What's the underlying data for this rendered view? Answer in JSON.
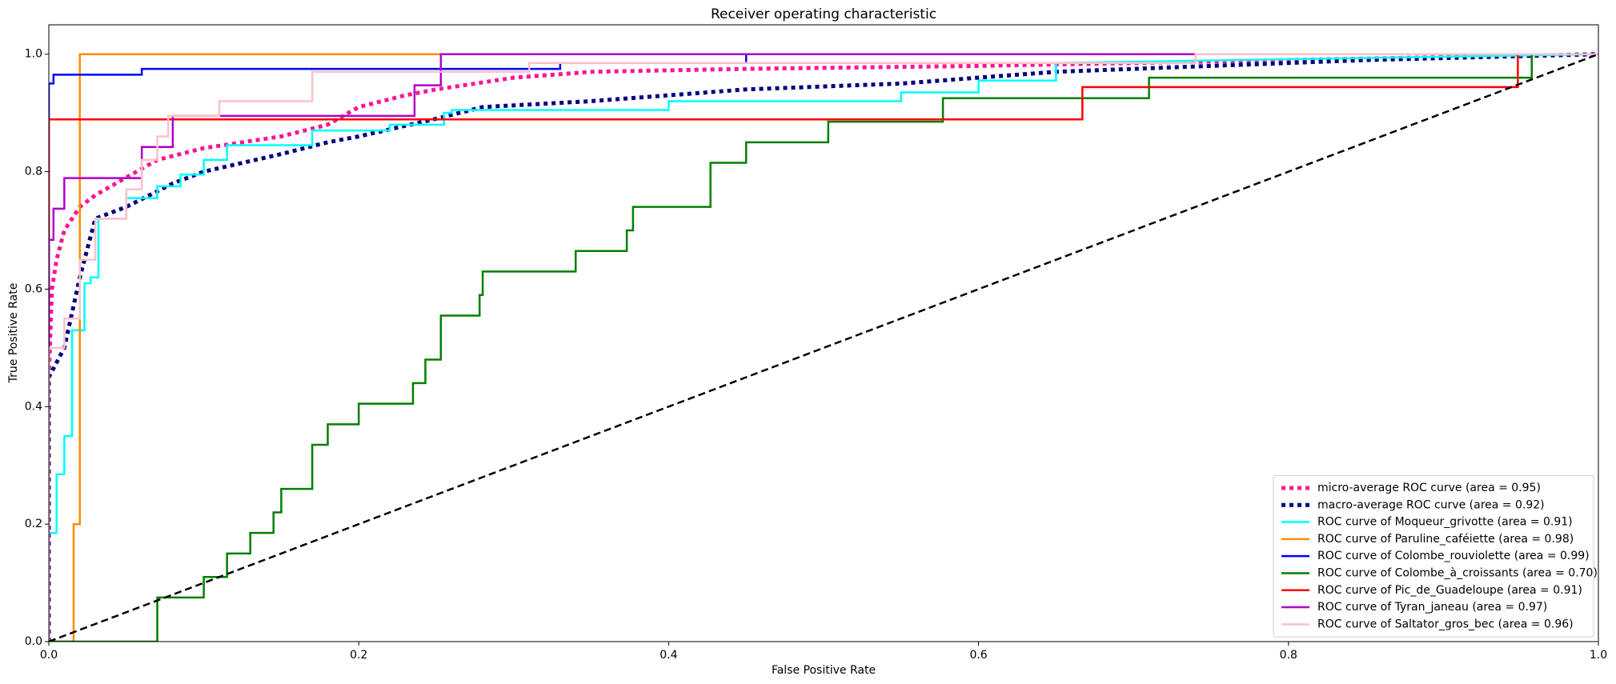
{
  "chart_data": {
    "type": "line",
    "title": "Receiver operating characteristic",
    "xlabel": "False Positive Rate",
    "ylabel": "True Positive Rate",
    "xlim": [
      0,
      1
    ],
    "ylim": [
      0,
      1.05
    ],
    "xticks": [
      {
        "value": 0,
        "label": "0.0"
      },
      0.2,
      0.4,
      0.6,
      0.8,
      {
        "value": 1,
        "label": "1.0"
      }
    ],
    "yticks": [
      {
        "value": 0,
        "label": "0.0"
      },
      0.2,
      0.4,
      0.6,
      0.8,
      {
        "value": 1,
        "label": "1.0"
      }
    ],
    "legend": "lower right",
    "series": [
      {
        "name": "micro-average ROC curve (area = 0.95)",
        "color": "deeppink",
        "linestyle": "dotted",
        "x": [
          0,
          0,
          0.002,
          0.005,
          0.01,
          0.02,
          0.03,
          0.05,
          0.07,
          0.1,
          0.15,
          0.18,
          0.2,
          0.23,
          0.25,
          0.3,
          0.35,
          0.45,
          0.6,
          0.7,
          0.8,
          0.9,
          1
        ],
        "y": [
          0,
          0.45,
          0.6,
          0.65,
          0.7,
          0.74,
          0.76,
          0.79,
          0.82,
          0.84,
          0.86,
          0.88,
          0.91,
          0.93,
          0.94,
          0.96,
          0.97,
          0.975,
          0.98,
          0.985,
          0.99,
          0.995,
          1
        ]
      },
      {
        "name": "macro-average ROC curve (area = 0.92)",
        "color": "navy",
        "linestyle": "dotted",
        "x": [
          0,
          0,
          0.01,
          0.02,
          0.03,
          0.05,
          0.08,
          0.1,
          0.15,
          0.18,
          0.2,
          0.25,
          0.28,
          0.35,
          0.45,
          0.55,
          0.65,
          0.75,
          0.85,
          1
        ],
        "y": [
          0,
          0.45,
          0.5,
          0.62,
          0.72,
          0.74,
          0.78,
          0.8,
          0.83,
          0.85,
          0.86,
          0.89,
          0.91,
          0.92,
          0.94,
          0.95,
          0.97,
          0.98,
          0.99,
          1
        ]
      },
      {
        "name": "ROC curve of Moqueur_grivotte (area = 0.91)",
        "color": "aqua",
        "linestyle": "solid",
        "x": [
          0,
          0,
          0.005,
          0.005,
          0.01,
          0.01,
          0.015,
          0.015,
          0.023,
          0.023,
          0.027,
          0.027,
          0.032,
          0.032,
          0.05,
          0.05,
          0.07,
          0.07,
          0.085,
          0.085,
          0.1,
          0.1,
          0.115,
          0.115,
          0.17,
          0.17,
          0.22,
          0.22,
          0.255,
          0.255,
          0.26,
          0.26,
          0.4,
          0.4,
          0.55,
          0.55,
          0.6,
          0.6,
          0.65,
          0.65,
          1
        ],
        "y": [
          0,
          0.185,
          0.185,
          0.285,
          0.285,
          0.35,
          0.35,
          0.53,
          0.53,
          0.61,
          0.61,
          0.62,
          0.62,
          0.72,
          0.72,
          0.755,
          0.755,
          0.775,
          0.775,
          0.795,
          0.795,
          0.82,
          0.82,
          0.845,
          0.845,
          0.87,
          0.87,
          0.88,
          0.88,
          0.9,
          0.9,
          0.905,
          0.905,
          0.92,
          0.92,
          0.935,
          0.935,
          0.955,
          0.955,
          0.985,
          1
        ]
      },
      {
        "name": "ROC curve of Paruline_caféiette (area = 0.98)",
        "color": "darkorange",
        "linestyle": "solid",
        "x": [
          0,
          0.016,
          0.016,
          0.02,
          0.02,
          1
        ],
        "y": [
          0,
          0,
          0.2,
          0.2,
          1,
          1
        ]
      },
      {
        "name": "ROC curve of Colombe_rouviolette (area = 0.99)",
        "color": "blue",
        "linestyle": "solid",
        "x": [
          0,
          0,
          0.003,
          0.003,
          0.06,
          0.06,
          0.33,
          0.33,
          0.45,
          0.45,
          1
        ],
        "y": [
          0,
          0.95,
          0.95,
          0.965,
          0.965,
          0.975,
          0.975,
          0.985,
          0.985,
          1,
          1
        ]
      },
      {
        "name": "ROC curve of Colombe_à_croissants (area = 0.70)",
        "color": "green",
        "linestyle": "solid",
        "x": [
          0,
          0.07,
          0.07,
          0.1,
          0.1,
          0.115,
          0.115,
          0.13,
          0.13,
          0.145,
          0.145,
          0.15,
          0.15,
          0.17,
          0.17,
          0.18,
          0.18,
          0.2,
          0.2,
          0.235,
          0.235,
          0.243,
          0.243,
          0.253,
          0.253,
          0.278,
          0.278,
          0.28,
          0.28,
          0.34,
          0.34,
          0.373,
          0.373,
          0.377,
          0.377,
          0.427,
          0.427,
          0.45,
          0.45,
          0.503,
          0.503,
          0.577,
          0.577,
          0.71,
          0.71,
          0.957,
          0.957,
          1
        ],
        "y": [
          0,
          0,
          0.075,
          0.075,
          0.11,
          0.11,
          0.15,
          0.15,
          0.185,
          0.185,
          0.22,
          0.22,
          0.26,
          0.26,
          0.335,
          0.335,
          0.37,
          0.37,
          0.405,
          0.405,
          0.44,
          0.44,
          0.48,
          0.48,
          0.555,
          0.555,
          0.59,
          0.59,
          0.63,
          0.63,
          0.665,
          0.665,
          0.7,
          0.7,
          0.74,
          0.74,
          0.815,
          0.815,
          0.85,
          0.85,
          0.885,
          0.885,
          0.925,
          0.925,
          0.96,
          0.96,
          1,
          1
        ]
      },
      {
        "name": "ROC curve of Pic_de_Guadeloupe (area = 0.91)",
        "color": "red",
        "linestyle": "solid",
        "x": [
          0,
          0,
          0.667,
          0.667,
          0.948,
          0.948,
          1
        ],
        "y": [
          0,
          0.889,
          0.889,
          0.944,
          0.944,
          1,
          1
        ]
      },
      {
        "name": "ROC curve of Tyran_janeau (area = 0.97)",
        "color": "#b000c8",
        "linestyle": "solid",
        "x": [
          0,
          0,
          0.003,
          0.003,
          0.01,
          0.01,
          0.06,
          0.06,
          0.08,
          0.08,
          0.236,
          0.236,
          0.253,
          0.253,
          1
        ],
        "y": [
          0,
          0.684,
          0.684,
          0.737,
          0.737,
          0.789,
          0.789,
          0.842,
          0.842,
          0.895,
          0.895,
          0.947,
          0.947,
          1,
          1
        ]
      },
      {
        "name": "ROC curve of Saltator_gros_bec (area = 0.96)",
        "color": "pink",
        "linestyle": "solid",
        "x": [
          0,
          0,
          0.01,
          0.01,
          0.02,
          0.02,
          0.03,
          0.03,
          0.05,
          0.05,
          0.06,
          0.06,
          0.07,
          0.07,
          0.077,
          0.077,
          0.11,
          0.11,
          0.17,
          0.17,
          0.31,
          0.31,
          0.74,
          0.74,
          1
        ],
        "y": [
          0,
          0.5,
          0.5,
          0.55,
          0.55,
          0.65,
          0.65,
          0.72,
          0.72,
          0.77,
          0.77,
          0.82,
          0.82,
          0.86,
          0.86,
          0.895,
          0.895,
          0.92,
          0.92,
          0.97,
          0.97,
          0.985,
          0.985,
          1,
          1
        ]
      }
    ]
  }
}
